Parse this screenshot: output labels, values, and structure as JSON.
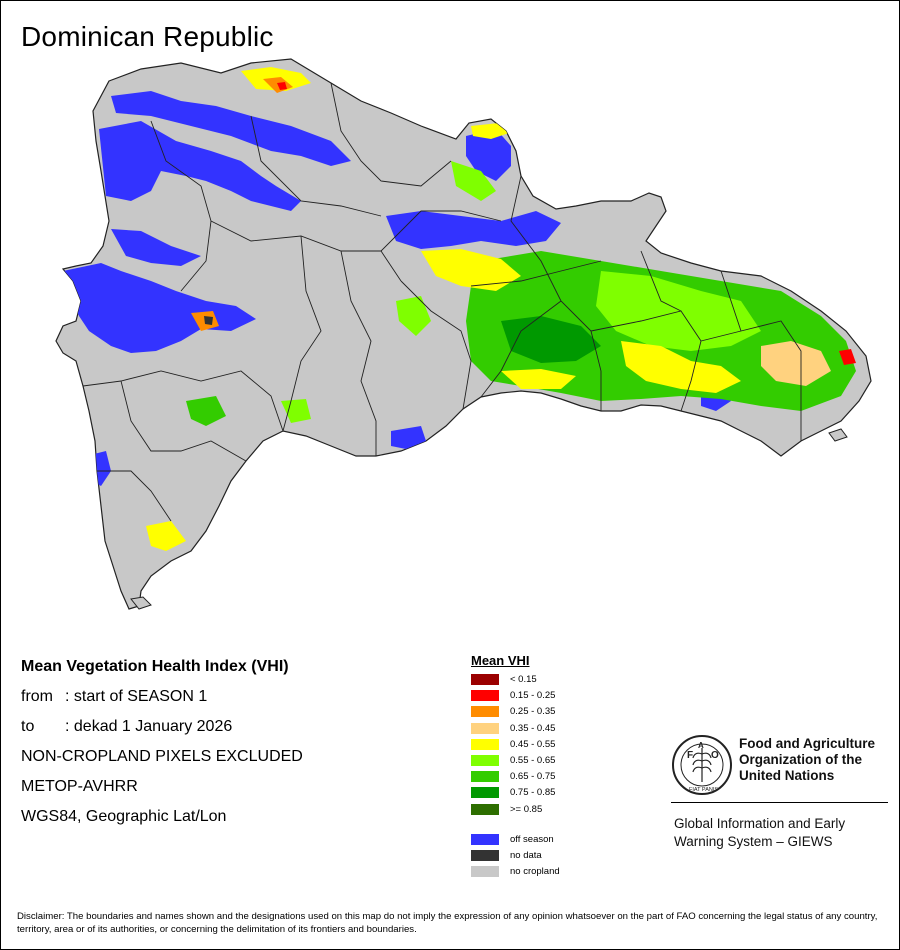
{
  "map_title": "Dominican Republic",
  "info": {
    "title": "Mean Vegetation Health Index (VHI)",
    "from_prefix": "from",
    "from_value": ": start of SEASON 1",
    "to_prefix": "to",
    "to_value": ": dekad 1 January 2026",
    "exclusion": "NON-CROPLAND PIXELS EXCLUDED",
    "sensor": "METOP-AVHRR",
    "projection": "WGS84, Geographic Lat/Lon"
  },
  "legend": {
    "title": "Mean VHI",
    "classes": [
      {
        "label": "< 0.15",
        "color": "#9b0000"
      },
      {
        "label": "0.15 - 0.25",
        "color": "#ff0000"
      },
      {
        "label": "0.25 - 0.35",
        "color": "#ff8c00"
      },
      {
        "label": "0.35 - 0.45",
        "color": "#ffd27f"
      },
      {
        "label": "0.45 - 0.55",
        "color": "#ffff00"
      },
      {
        "label": "0.55 - 0.65",
        "color": "#7fff00"
      },
      {
        "label": "0.65 - 0.75",
        "color": "#33cc00"
      },
      {
        "label": "0.75 - 0.85",
        "color": "#009900"
      },
      {
        "label": ">= 0.85",
        "color": "#2d6e00"
      }
    ],
    "other": [
      {
        "label": "off season",
        "color": "#3333ff"
      },
      {
        "label": "no data",
        "color": "#333333"
      },
      {
        "label": "no cropland",
        "color": "#c8c8c8"
      }
    ]
  },
  "logo": {
    "org_line1": "Food and Agriculture",
    "org_line2": "Organization of the",
    "org_line3": "United Nations",
    "motto": "FIAT PANIS",
    "giews_line1": "Global Information and Early",
    "giews_line2": "Warning System – GIEWS"
  },
  "disclaimer": "Disclaimer: The boundaries and names shown and the designations used on this map do not imply the expression of any opinion whatsoever on the part of FAO concerning the legal status of any country, territory, area or of its authorities, or concerning the delimitation of its frontiers and boundaries.",
  "colors": {
    "no_cropland": "#c8c8c8",
    "off_season": "#3333ff",
    "boundary": "#222222"
  }
}
